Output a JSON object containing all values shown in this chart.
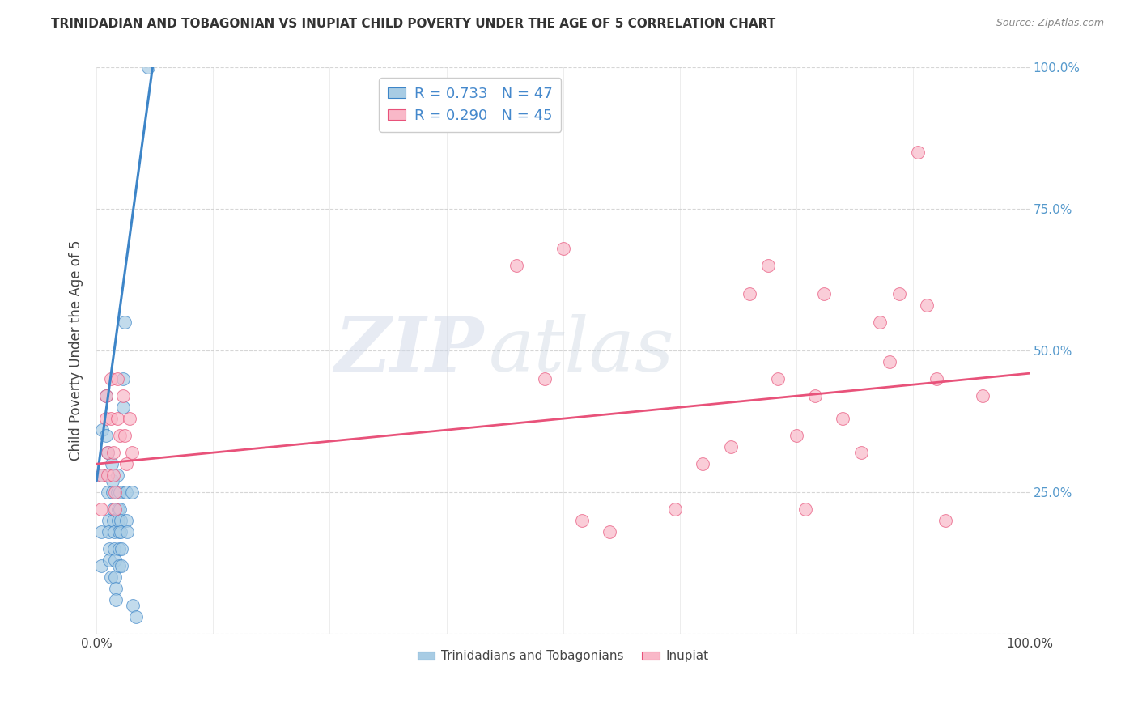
{
  "title": "TRINIDADIAN AND TOBAGONIAN VS INUPIAT CHILD POVERTY UNDER THE AGE OF 5 CORRELATION CHART",
  "source": "Source: ZipAtlas.com",
  "ylabel": "Child Poverty Under the Age of 5",
  "legend_blue_r": "R = 0.733",
  "legend_blue_n": "N = 47",
  "legend_pink_r": "R = 0.290",
  "legend_pink_n": "N = 45",
  "watermark_zip": "ZIP",
  "watermark_atlas": "atlas",
  "blue_color": "#a8cce4",
  "pink_color": "#f9b8c8",
  "blue_line_color": "#3d85c8",
  "pink_line_color": "#e8527a",
  "blue_scatter": [
    [
      0.5,
      18
    ],
    [
      0.5,
      12
    ],
    [
      0.6,
      36
    ],
    [
      0.6,
      28
    ],
    [
      1.0,
      42
    ],
    [
      1.0,
      35
    ],
    [
      1.2,
      32
    ],
    [
      1.2,
      25
    ],
    [
      1.3,
      20
    ],
    [
      1.3,
      18
    ],
    [
      1.4,
      15
    ],
    [
      1.4,
      13
    ],
    [
      1.5,
      10
    ],
    [
      1.6,
      30
    ],
    [
      1.7,
      27
    ],
    [
      1.7,
      25
    ],
    [
      1.8,
      22
    ],
    [
      1.8,
      20
    ],
    [
      1.9,
      18
    ],
    [
      1.9,
      15
    ],
    [
      2.0,
      13
    ],
    [
      2.0,
      10
    ],
    [
      2.1,
      8
    ],
    [
      2.1,
      6
    ],
    [
      2.2,
      28
    ],
    [
      2.2,
      25
    ],
    [
      2.3,
      22
    ],
    [
      2.3,
      20
    ],
    [
      2.4,
      18
    ],
    [
      2.4,
      15
    ],
    [
      2.4,
      12
    ],
    [
      2.5,
      25
    ],
    [
      2.5,
      22
    ],
    [
      2.6,
      20
    ],
    [
      2.6,
      18
    ],
    [
      2.7,
      15
    ],
    [
      2.7,
      12
    ],
    [
      2.8,
      45
    ],
    [
      2.8,
      40
    ],
    [
      3.0,
      55
    ],
    [
      3.2,
      25
    ],
    [
      3.2,
      20
    ],
    [
      3.3,
      18
    ],
    [
      3.8,
      25
    ],
    [
      3.9,
      5
    ],
    [
      4.2,
      3
    ],
    [
      5.5,
      100
    ]
  ],
  "pink_scatter": [
    [
      0.5,
      28
    ],
    [
      0.5,
      22
    ],
    [
      1.0,
      42
    ],
    [
      1.0,
      38
    ],
    [
      1.2,
      32
    ],
    [
      1.2,
      28
    ],
    [
      1.5,
      45
    ],
    [
      1.5,
      38
    ],
    [
      1.8,
      32
    ],
    [
      1.8,
      28
    ],
    [
      2.0,
      25
    ],
    [
      2.0,
      22
    ],
    [
      2.2,
      45
    ],
    [
      2.2,
      38
    ],
    [
      2.5,
      35
    ],
    [
      2.8,
      42
    ],
    [
      3.0,
      35
    ],
    [
      3.2,
      30
    ],
    [
      3.5,
      38
    ],
    [
      3.8,
      32
    ],
    [
      45,
      65
    ],
    [
      48,
      45
    ],
    [
      50,
      68
    ],
    [
      52,
      20
    ],
    [
      55,
      18
    ],
    [
      62,
      22
    ],
    [
      65,
      30
    ],
    [
      68,
      33
    ],
    [
      70,
      60
    ],
    [
      72,
      65
    ],
    [
      73,
      45
    ],
    [
      75,
      35
    ],
    [
      76,
      22
    ],
    [
      77,
      42
    ],
    [
      78,
      60
    ],
    [
      80,
      38
    ],
    [
      82,
      32
    ],
    [
      84,
      55
    ],
    [
      85,
      48
    ],
    [
      86,
      60
    ],
    [
      88,
      85
    ],
    [
      89,
      58
    ],
    [
      90,
      45
    ],
    [
      91,
      20
    ],
    [
      95,
      42
    ]
  ],
  "blue_trend_x": [
    0,
    6
  ],
  "blue_trend_y": [
    27,
    100
  ],
  "pink_trend_x": [
    0,
    100
  ],
  "pink_trend_y": [
    30,
    46
  ],
  "xlim": [
    0,
    100
  ],
  "ylim": [
    0,
    100
  ],
  "xtick_positions": [
    0,
    12.5,
    25,
    37.5,
    50,
    62.5,
    75,
    87.5,
    100
  ],
  "ytick_positions": [
    0,
    25,
    50,
    75,
    100
  ],
  "ytick_labels_right": [
    "",
    "25.0%",
    "50.0%",
    "75.0%",
    "100.0%"
  ]
}
